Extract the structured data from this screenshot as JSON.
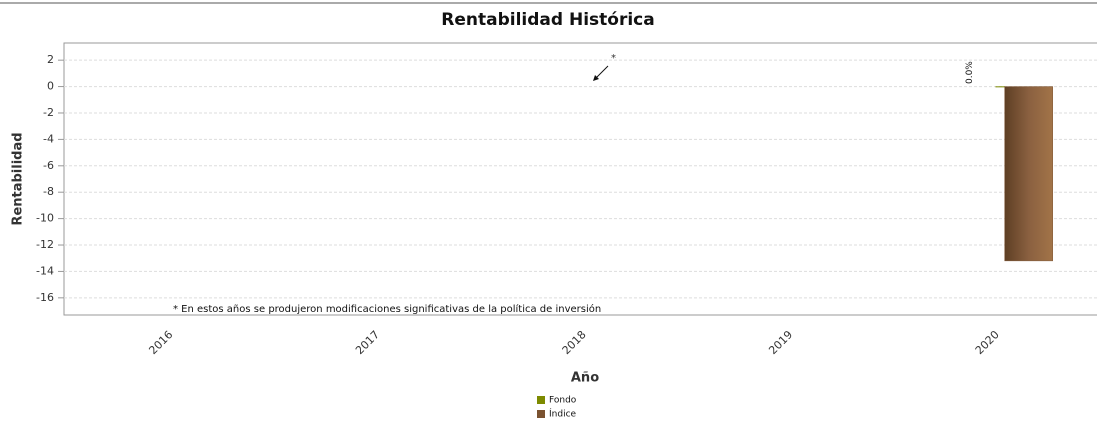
{
  "chart_data": {
    "type": "bar",
    "title": "Rentabilidad Histórica",
    "x_label": "Año",
    "y_label": "Rentabilidad",
    "categories": [
      "2016",
      "2017",
      "2018",
      "2019",
      "2020"
    ],
    "series": [
      {
        "name": "Fondo",
        "color": "#7d8a00",
        "values": [
          null,
          null,
          null,
          null,
          0
        ],
        "value_labels": [
          null,
          null,
          null,
          null,
          "0.0%"
        ]
      },
      {
        "name": "Índice",
        "color": "#7a5230",
        "values": [
          null,
          null,
          null,
          null,
          -13.2
        ]
      }
    ],
    "ylim": [
      -17.3,
      3.3
    ],
    "yticks": [
      2,
      0,
      -2,
      -4,
      -6,
      -8,
      -10,
      -12,
      -14,
      -16
    ],
    "grid": true,
    "annotation_marker": "*",
    "footnote": "* En estos años se produjeron modificaciones significativas de la política de inversión"
  }
}
